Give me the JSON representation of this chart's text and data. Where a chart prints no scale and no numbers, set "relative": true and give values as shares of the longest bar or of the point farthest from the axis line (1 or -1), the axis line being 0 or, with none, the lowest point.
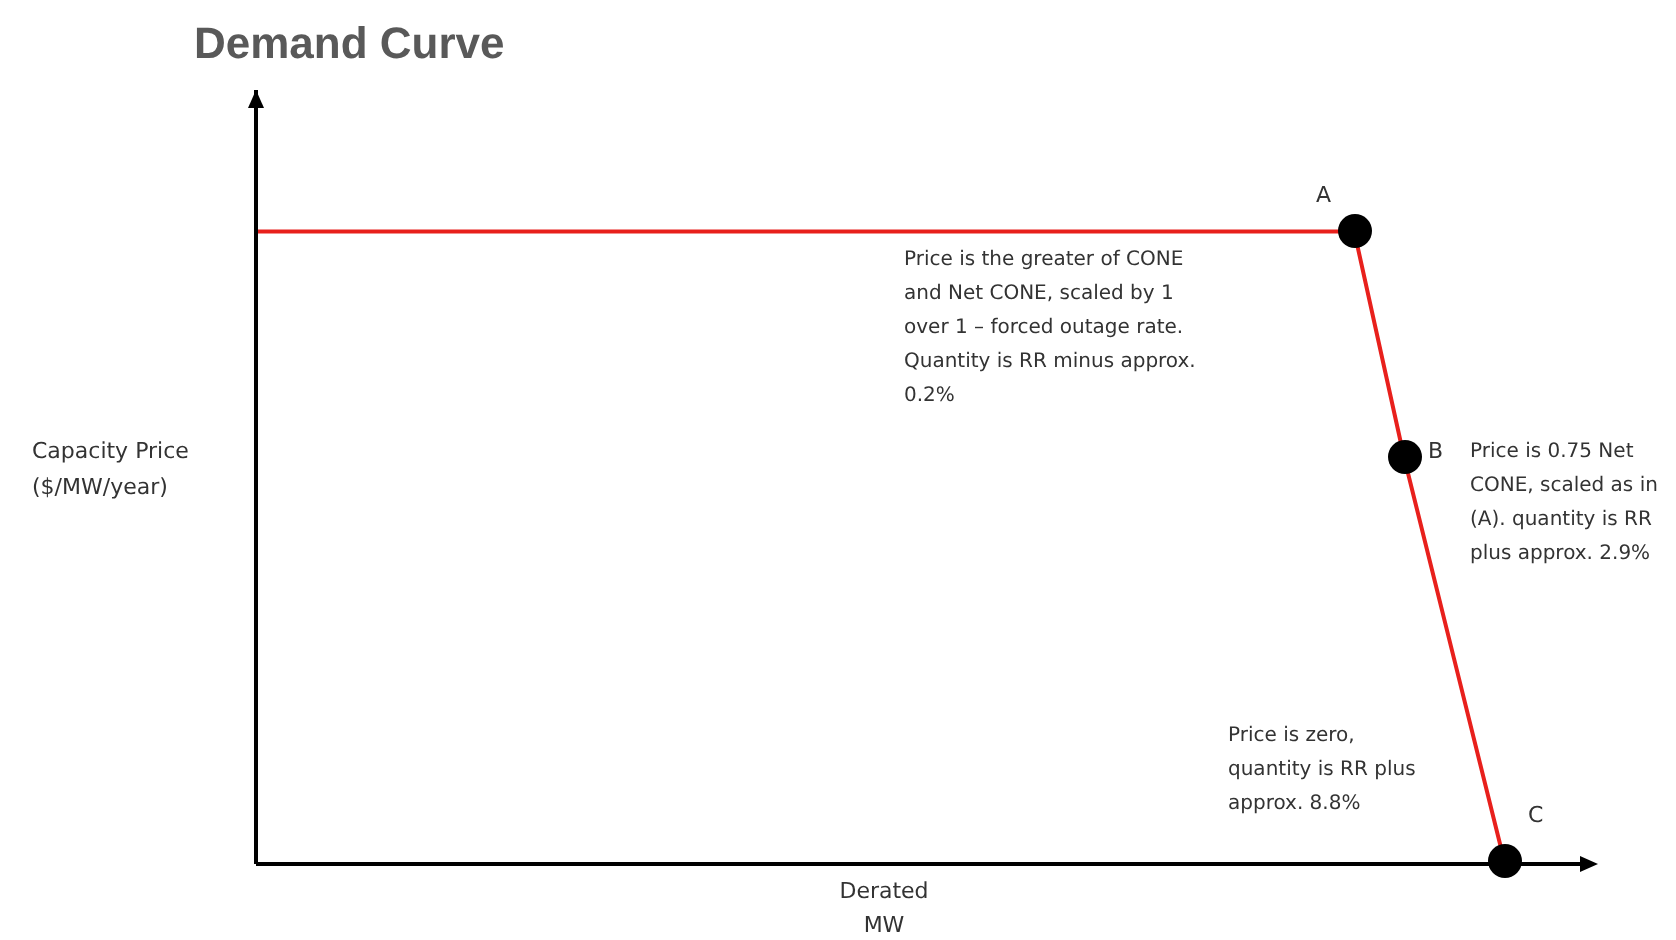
{
  "chart_data": {
    "type": "line",
    "title": "Demand Curve",
    "xlabel": "Derated\nMW",
    "ylabel": "Capacity Price\n($/MW/year)",
    "relative": true,
    "categories": [
      null,
      null,
      null,
      null,
      null,
      null,
      null,
      null,
      null,
      null,
      null,
      null,
      null,
      null,
      null,
      null,
      null,
      null,
      null,
      null,
      null,
      null,
      null,
      null,
      null,
      null
    ],
    "series": [
      {
        "color": "#e8201c",
        "values": [
          1,
          1,
          1,
          1,
          1,
          1,
          1,
          1,
          1,
          1,
          1,
          1,
          1,
          1,
          1,
          1,
          1,
          1,
          1,
          1,
          1,
          1,
          1,
          0.64,
          0.32,
          0
        ]
      }
    ],
    "tick_labels": false,
    "annotations": [
      "A",
      "B",
      "C",
      "Price is the greater of CONE\nand Net CONE, scaled by 1\nover 1 – forced outage rate.\nQuantity is RR minus approx.\n0.2%",
      "Price is 0.75 Net\nCONE, scaled as in\n(A). quantity is RR\nplus approx. 2.9%",
      "Price is zero,\nquantity is RR plus\napprox. 8.8%"
    ]
  }
}
